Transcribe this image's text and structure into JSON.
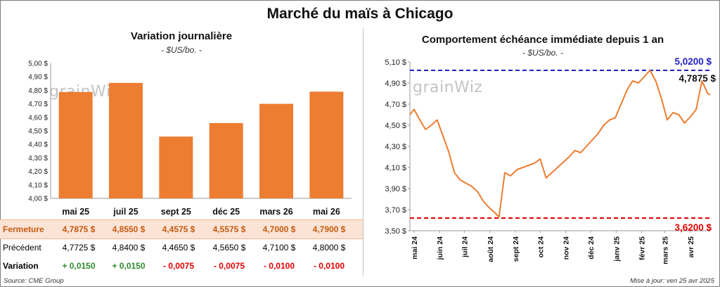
{
  "title": "Marché du maïs à Chicago",
  "left": {
    "subtitle": "Variation journalière",
    "unit": "- $US/bo. -",
    "logo": "grainWiz"
  },
  "right": {
    "subtitle": "Comportement échéance immédiate depuis 1 an",
    "unit": "- $US/bo. -",
    "logo": "grainWiz",
    "high_label": "5,0200 $",
    "low_label": "3,6200 $",
    "last_label": "4,7875 $"
  },
  "table": {
    "row_labels": {
      "close": "Fermeture",
      "prev": "Précédent",
      "change": "Variation"
    },
    "close": [
      "4,7875  $",
      "4,8550  $",
      "4,4575  $",
      "4,5575  $",
      "4,7000  $",
      "4,7900  $"
    ],
    "prev": [
      "4,7725  $",
      "4,8400  $",
      "4,4650  $",
      "4,5650  $",
      "4,7100  $",
      "4,8000  $"
    ],
    "change": [
      "+ 0,0150",
      "+ 0,0150",
      "- 0,0075",
      "- 0,0075",
      "- 0,0100",
      "- 0,0100"
    ]
  },
  "footer": {
    "source": "Source: CME Group",
    "updated": "Mise à jour: ven 25 avr 2025"
  },
  "colors": {
    "bar": "#ed7d31",
    "line": "#ed7d31",
    "high": "#2020c0",
    "low": "#e00000",
    "pos": "#2e8b2e",
    "neg": "#e00000"
  },
  "chart_data": [
    {
      "type": "bar",
      "title": "Variation journalière",
      "subtitle": "- $US/bo. -",
      "categories": [
        "mai 25",
        "juil 25",
        "sept 25",
        "déc 25",
        "mars 26",
        "mai 26"
      ],
      "values": [
        4.7875,
        4.855,
        4.4575,
        4.5575,
        4.7,
        4.79
      ],
      "ylim": [
        4.0,
        5.0
      ],
      "yticks": [
        "4,00 $",
        "4,10 $",
        "4,20 $",
        "4,30 $",
        "4,40 $",
        "4,50 $",
        "4,60 $",
        "4,70 $",
        "4,80 $",
        "4,90 $",
        "5,00 $"
      ],
      "grid": false
    },
    {
      "type": "line",
      "title": "Comportement échéance immédiate depuis 1 an",
      "subtitle": "- $US/bo. -",
      "x": [
        "2024-04-26",
        "2024-05-01",
        "2024-05-08",
        "2024-05-15",
        "2024-05-22",
        "2024-05-29",
        "2024-06-05",
        "2024-06-12",
        "2024-06-19",
        "2024-06-26",
        "2024-07-03",
        "2024-07-10",
        "2024-07-17",
        "2024-07-24",
        "2024-07-31",
        "2024-08-07",
        "2024-08-12",
        "2024-08-19",
        "2024-08-26",
        "2024-09-03",
        "2024-09-10",
        "2024-09-17",
        "2024-09-24",
        "2024-10-01",
        "2024-10-08",
        "2024-10-15",
        "2024-10-22",
        "2024-10-29",
        "2024-11-05",
        "2024-11-12",
        "2024-11-19",
        "2024-11-26",
        "2024-12-03",
        "2024-12-10",
        "2024-12-17",
        "2024-12-24",
        "2024-12-31",
        "2025-01-07",
        "2025-01-14",
        "2025-01-21",
        "2025-01-28",
        "2025-02-04",
        "2025-02-11",
        "2025-02-18",
        "2025-02-25",
        "2025-03-04",
        "2025-03-11",
        "2025-03-18",
        "2025-03-25",
        "2025-04-01",
        "2025-04-08",
        "2025-04-15",
        "2025-04-22",
        "2025-04-25"
      ],
      "values": [
        4.6,
        4.65,
        4.55,
        4.46,
        4.5,
        4.55,
        4.4,
        4.25,
        4.05,
        3.98,
        3.95,
        3.92,
        3.87,
        3.78,
        3.72,
        3.67,
        3.63,
        4.05,
        4.02,
        4.08,
        4.1,
        4.12,
        4.14,
        4.18,
        4.0,
        4.05,
        4.1,
        4.15,
        4.2,
        4.26,
        4.24,
        4.3,
        4.36,
        4.42,
        4.5,
        4.55,
        4.57,
        4.7,
        4.83,
        4.92,
        4.9,
        4.96,
        5.02,
        4.92,
        4.75,
        4.55,
        4.62,
        4.6,
        4.52,
        4.58,
        4.65,
        4.92,
        4.8,
        4.7875
      ],
      "ylim": [
        3.5,
        5.1
      ],
      "yticks": [
        "3,50 $",
        "3,70 $",
        "3,90 $",
        "4,10 $",
        "4,30 $",
        "4,50 $",
        "4,70 $",
        "4,90 $",
        "5,10 $"
      ],
      "xticks": [
        "mai 24",
        "juin 24",
        "juil 24",
        "août 24",
        "sept 24",
        "oct 24",
        "nov 24",
        "déc 24",
        "janv 25",
        "févr 25",
        "mars 25",
        "avr 25"
      ],
      "reference_lines": [
        {
          "label": "5,0200 $",
          "value": 5.02,
          "style": "dashed",
          "color": "#2020c0"
        },
        {
          "label": "3,6200 $",
          "value": 3.62,
          "style": "dashed",
          "color": "#e00000"
        }
      ],
      "last_value": 4.7875,
      "grid": false
    }
  ]
}
